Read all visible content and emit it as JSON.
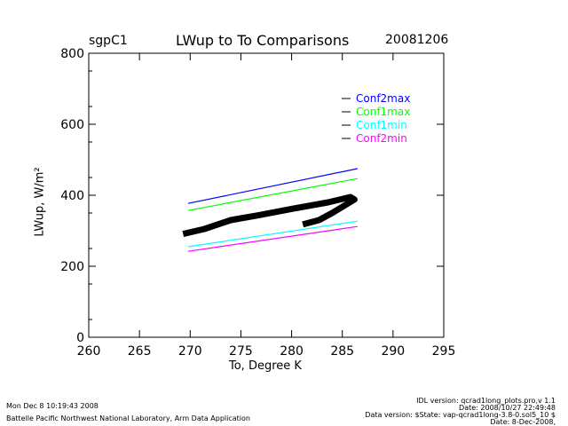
{
  "chart_data": {
    "type": "line",
    "title": "LWup to To Comparisons",
    "site": "sgpC1",
    "date": "20081206",
    "xlabel": "To, Degree K",
    "ylabel": "LWup, W/m²",
    "xlim": [
      260,
      295
    ],
    "ylim": [
      0,
      800
    ],
    "xticks": [
      "260",
      "265",
      "270",
      "275",
      "280",
      "285",
      "290",
      "295"
    ],
    "yticks": [
      "0",
      "200",
      "400",
      "600",
      "800"
    ],
    "legend_position": "top-right",
    "series": [
      {
        "name": "Conf2max",
        "color": "#0000ff",
        "x": [
          269.8,
          286.5
        ],
        "y": [
          377,
          475
        ]
      },
      {
        "name": "Conf1max",
        "color": "#00ff00",
        "x": [
          269.8,
          286.5
        ],
        "y": [
          357,
          447
        ]
      },
      {
        "name": "Conf1min",
        "color": "#00ffff",
        "x": [
          269.8,
          286.5
        ],
        "y": [
          255,
          327
        ]
      },
      {
        "name": "Conf2min",
        "color": "#ff00ff",
        "x": [
          269.8,
          286.5
        ],
        "y": [
          242,
          312
        ]
      }
    ],
    "observed": {
      "color": "#000000",
      "x": [
        269.6,
        271.4,
        274.0,
        276.6,
        280.1,
        283.6,
        285.8,
        286.2,
        284.0,
        282.7,
        281.4
      ],
      "y": [
        293,
        305,
        330,
        343,
        362,
        380,
        395,
        388,
        350,
        330,
        320
      ]
    }
  },
  "footer": {
    "timestamp": "Mon Dec  8 10:19:43 2008",
    "institution": "Battelle Pacific Northwest National Laboratory, Arm Data Application",
    "idl_version": "IDL version: qcrad1long_plots.pro,v 1.1",
    "idl_date": "Date: 2008/10/27 22:49:48",
    "data_version": "Data version: $State: vap-qcrad1long-3.8-0.sol5_10 $",
    "data_date": "Date: 8-Dec-2008,"
  }
}
